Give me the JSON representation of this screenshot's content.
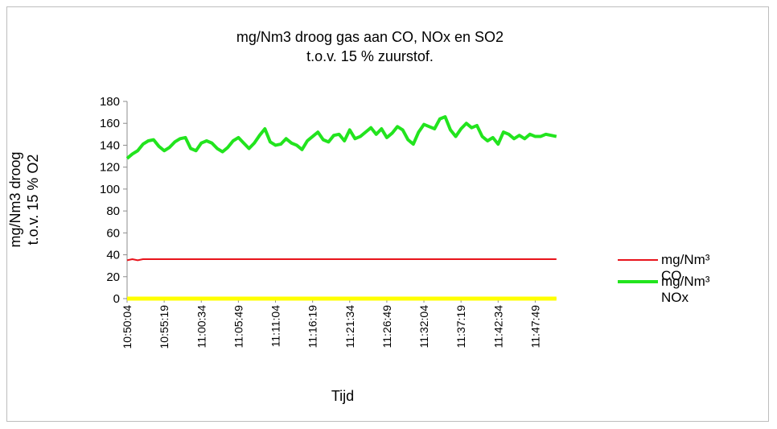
{
  "chart_data": {
    "type": "line",
    "title": "mg/Nm3 droog gas aan CO, NOx en SO2\nt.o.v. 15 % zuurstof.",
    "y_label": "mg/Nm3 droog\nt.o.v. 15 % O2",
    "x_label": "Tijd",
    "categories": [
      "10:50:04",
      null,
      null,
      null,
      null,
      null,
      null,
      "10:55:19",
      null,
      null,
      null,
      null,
      null,
      null,
      "11:00:34",
      null,
      null,
      null,
      null,
      null,
      null,
      "11:05:49",
      null,
      null,
      null,
      null,
      null,
      null,
      "11:11:04",
      null,
      null,
      null,
      null,
      null,
      null,
      "11:16:19",
      null,
      null,
      null,
      null,
      null,
      null,
      "11:21:34",
      null,
      null,
      null,
      null,
      null,
      null,
      "11:26:49",
      null,
      null,
      null,
      null,
      null,
      null,
      "11:32:04",
      null,
      null,
      null,
      null,
      null,
      null,
      "11:37:19",
      null,
      null,
      null,
      null,
      null,
      null,
      "11:42:34",
      null,
      null,
      null,
      null,
      null,
      null,
      "11:47:49",
      null,
      null,
      null,
      null
    ],
    "series": [
      {
        "name": "mg/Nm³ CO",
        "color": "#e8141c",
        "width": 2,
        "values": [
          35,
          36,
          35,
          36,
          36,
          36,
          36,
          36,
          36,
          36,
          36,
          36,
          36,
          36,
          36,
          36,
          36,
          36,
          36,
          36,
          36,
          36,
          36,
          36,
          36,
          36,
          36,
          36,
          36,
          36,
          36,
          36,
          36,
          36,
          36,
          36,
          36,
          36,
          36,
          36,
          36,
          36,
          36,
          36,
          36,
          36,
          36,
          36,
          36,
          36,
          36,
          36,
          36,
          36,
          36,
          36,
          36,
          36,
          36,
          36,
          36,
          36,
          36,
          36,
          36,
          36,
          36,
          36,
          36,
          36,
          36,
          36,
          36,
          36,
          36,
          36,
          36,
          36,
          36,
          36,
          36,
          36
        ]
      },
      {
        "name": "mg/Nm³ NOx",
        "color": "#22e41e",
        "width": 4,
        "values": [
          128,
          132,
          135,
          141,
          144,
          145,
          139,
          135,
          138,
          143,
          146,
          147,
          137,
          135,
          142,
          144,
          142,
          137,
          134,
          138,
          144,
          147,
          142,
          137,
          142,
          149,
          155,
          143,
          140,
          141,
          146,
          142,
          140,
          136,
          144,
          148,
          152,
          145,
          143,
          149,
          150,
          144,
          154,
          146,
          148,
          152,
          156,
          150,
          155,
          147,
          151,
          157,
          154,
          145,
          141,
          152,
          159,
          157,
          155,
          164,
          166,
          154,
          148,
          155,
          160,
          156,
          158,
          148,
          144,
          147,
          141,
          152,
          150,
          146,
          149,
          146,
          150,
          148,
          148,
          150,
          149,
          148
        ]
      },
      {
        "color": "#ffff00",
        "width": 5,
        "values": [
          0,
          0,
          0,
          0,
          0,
          0,
          0,
          0,
          0,
          0,
          0,
          0,
          0,
          0,
          0,
          0,
          0,
          0,
          0,
          0,
          0,
          0,
          0,
          0,
          0,
          0,
          0,
          0,
          0,
          0,
          0,
          0,
          0,
          0,
          0,
          0,
          0,
          0,
          0,
          0,
          0,
          0,
          0,
          0,
          0,
          0,
          0,
          0,
          0,
          0,
          0,
          0,
          0,
          0,
          0,
          0,
          0,
          0,
          0,
          0,
          0,
          0,
          0,
          0,
          0,
          0,
          0,
          0,
          0,
          0,
          0,
          0,
          0,
          0,
          0,
          0,
          0,
          0,
          0,
          0,
          0,
          0
        ]
      }
    ],
    "ylim": [
      0,
      180
    ],
    "yticks": [
      0,
      20,
      40,
      60,
      80,
      100,
      120,
      140,
      160,
      180
    ]
  }
}
